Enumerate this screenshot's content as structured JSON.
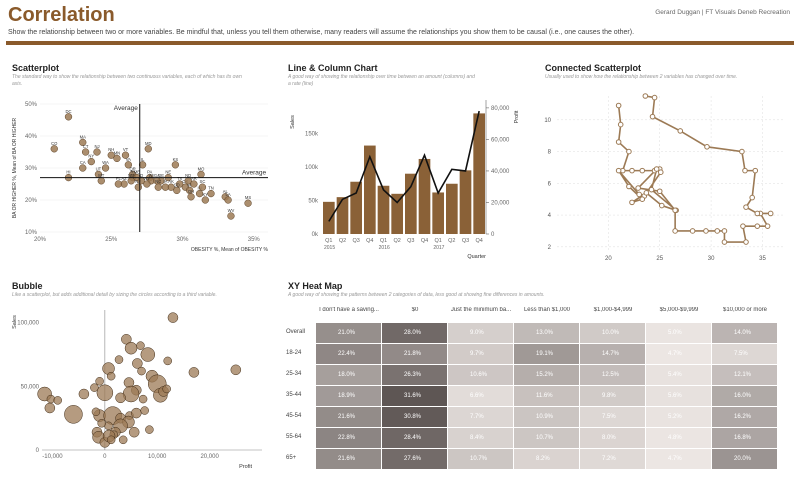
{
  "header": {
    "title": "Correlation",
    "credit": "Gerard Duggan  |  FT Visuals Deneb Recreation",
    "description": "Show the relationship between two or more variables. Be mindful that, unless you tell them otherwise, many readers will assume the relationships you show them to be causal (i.e., one causes the other).",
    "accent_color": "#8a5a2b"
  },
  "panels": {
    "scatter": {
      "title": "Scatterplot",
      "desc": "The standard way to show the relationship between two continuous variables, each of which has its own axis."
    },
    "linecol": {
      "title": "Line & Column Chart",
      "desc": "A good way of showing the relationship over time between an amount (columns) and a rate (line)"
    },
    "connected": {
      "title": "Connected Scatterplot",
      "desc": "Usually used to show how the relationship between 2 variables has changed over time."
    },
    "bubble": {
      "title": "Bubble",
      "desc": "Like a scatterplot, but adds additional detail by sizing the circles according to a third variable."
    },
    "heatmap": {
      "title": "XY Heat Map",
      "desc": "A good way of showing the patterns between 2 categories of data, less good at showing fine differences in amounts."
    }
  },
  "chart_data": [
    {
      "id": "scatter",
      "type": "scatter",
      "title": "Scatterplot",
      "xlabel": "OBESITY %, Mean of OBESITY %",
      "ylabel": "BA OR HIGHER %, Mean of BA OR HIGHER",
      "xlim": [
        20,
        36
      ],
      "ylim": [
        10,
        50
      ],
      "xticks": [
        "20%",
        "25%",
        "30%",
        "35%"
      ],
      "yticks": [
        "10%",
        "20%",
        "30%",
        "40%",
        "50%"
      ],
      "x_mean": 27,
      "y_mean": 27,
      "mean_label": "Average",
      "points": [
        {
          "label": "DC",
          "x": 22,
          "y": 46
        },
        {
          "label": "CO",
          "x": 21,
          "y": 36
        },
        {
          "label": "MA",
          "x": 23,
          "y": 38
        },
        {
          "label": "CT",
          "x": 23.2,
          "y": 35
        },
        {
          "label": "NJ",
          "x": 24,
          "y": 35
        },
        {
          "label": "NH",
          "x": 25,
          "y": 34
        },
        {
          "label": "MN",
          "x": 25.4,
          "y": 33
        },
        {
          "label": "VT",
          "x": 26,
          "y": 34
        },
        {
          "label": "MD",
          "x": 27.6,
          "y": 36
        },
        {
          "label": "VA",
          "x": 26.2,
          "y": 31
        },
        {
          "label": "NY",
          "x": 23.6,
          "y": 32
        },
        {
          "label": "WA",
          "x": 24.6,
          "y": 30
        },
        {
          "label": "CA",
          "x": 23,
          "y": 30
        },
        {
          "label": "IL",
          "x": 27.2,
          "y": 31
        },
        {
          "label": "KS",
          "x": 29.5,
          "y": 31
        },
        {
          "label": "MO",
          "x": 31.3,
          "y": 28
        },
        {
          "label": "UT",
          "x": 24.1,
          "y": 28
        },
        {
          "label": "OR",
          "x": 26.5,
          "y": 28
        },
        {
          "label": "HI",
          "x": 22,
          "y": 27
        },
        {
          "label": "NE",
          "x": 29,
          "y": 27
        },
        {
          "label": "RI",
          "x": 26.5,
          "y": 27
        },
        {
          "label": "DE",
          "x": 28.5,
          "y": 26
        },
        {
          "label": "PA",
          "x": 27.7,
          "y": 27
        },
        {
          "label": "WI",
          "x": 27.8,
          "y": 26
        },
        {
          "label": "GA",
          "x": 28.2,
          "y": 26
        },
        {
          "label": "MT",
          "x": 24.3,
          "y": 26
        },
        {
          "label": "AZ",
          "x": 25.9,
          "y": 25
        },
        {
          "label": "FL",
          "x": 25.5,
          "y": 25
        },
        {
          "label": "NC",
          "x": 28.3,
          "y": 24
        },
        {
          "label": "OK",
          "x": 30.2,
          "y": 24
        },
        {
          "label": "TX",
          "x": 29.8,
          "y": 25
        },
        {
          "label": "IN",
          "x": 31.2,
          "y": 22
        },
        {
          "label": "MI",
          "x": 30.5,
          "y": 23
        },
        {
          "label": "SC",
          "x": 31.4,
          "y": 24
        },
        {
          "label": "OH",
          "x": 30.6,
          "y": 21
        },
        {
          "label": "TN",
          "x": 32,
          "y": 22
        },
        {
          "label": "AL",
          "x": 33,
          "y": 21
        },
        {
          "label": "KY",
          "x": 31.6,
          "y": 20
        },
        {
          "label": "LA",
          "x": 33.2,
          "y": 20
        },
        {
          "label": "MS",
          "x": 34.6,
          "y": 19
        },
        {
          "label": "WV",
          "x": 33.4,
          "y": 15
        },
        {
          "label": "ME",
          "x": 26.8,
          "y": 27
        },
        {
          "label": "AK",
          "x": 29.2,
          "y": 24
        },
        {
          "label": "ND",
          "x": 30.4,
          "y": 26
        },
        {
          "label": "SD",
          "x": 29.6,
          "y": 23
        },
        {
          "label": "IA",
          "x": 28.8,
          "y": 24
        },
        {
          "label": "NV",
          "x": 26.9,
          "y": 24
        },
        {
          "label": "NM",
          "x": 26.4,
          "y": 26
        },
        {
          "label": "WY",
          "x": 27.5,
          "y": 25
        },
        {
          "label": "ID",
          "x": 27.1,
          "y": 26
        },
        {
          "label": "AR",
          "x": 30.8,
          "y": 25
        }
      ]
    },
    {
      "id": "linecol",
      "type": "bar+line",
      "title": "Line & Column Chart",
      "ylabel": "Sales",
      "y2label": "Profit",
      "xlabel": "Quarter",
      "categories": [
        "Q1",
        "Q2",
        "Q3",
        "Q4",
        "Q1",
        "Q2",
        "Q3",
        "Q4",
        "Q1",
        "Q2",
        "Q3",
        "Q4"
      ],
      "years": [
        {
          "label": "2015",
          "at": 0
        },
        {
          "label": "2016",
          "at": 4
        },
        {
          "label": "2017",
          "at": 8
        }
      ],
      "bars": [
        48000,
        55000,
        78000,
        132000,
        72000,
        60000,
        90000,
        112000,
        62000,
        75000,
        95000,
        180000
      ],
      "line": [
        8000,
        22000,
        26000,
        49000,
        28000,
        20000,
        30000,
        50000,
        26000,
        41000,
        40000,
        78000
      ],
      "ylim": [
        0,
        200000
      ],
      "y2lim": [
        0,
        85000
      ],
      "yticks": [
        "0k",
        "50k",
        "100k",
        "150k"
      ],
      "y2ticks": [
        "0",
        "20,000",
        "40,000",
        "60,000",
        "80,000"
      ]
    },
    {
      "id": "connected",
      "type": "line",
      "title": "Connected Scatterplot",
      "xlim": [
        15,
        37
      ],
      "ylim": [
        1.8,
        11.5
      ],
      "xticks": [
        "20",
        "25",
        "30",
        "35"
      ],
      "yticks": [
        "2",
        "4",
        "6",
        "8",
        "10"
      ],
      "points": [
        [
          21,
          10.9
        ],
        [
          21.2,
          9.7
        ],
        [
          21,
          8.6
        ],
        [
          22,
          8
        ],
        [
          21.4,
          6.8
        ],
        [
          22.3,
          6.8
        ],
        [
          23.3,
          6.8
        ],
        [
          24.5,
          6.8
        ],
        [
          25,
          6.9
        ],
        [
          25.1,
          6.7
        ],
        [
          23.5,
          5.2
        ],
        [
          23,
          5.3
        ],
        [
          21,
          6.8
        ],
        [
          22,
          5.8
        ],
        [
          23.3,
          5
        ],
        [
          22.3,
          4.8
        ],
        [
          23.7,
          5.4
        ],
        [
          25.2,
          4.6
        ],
        [
          26.6,
          4.3
        ],
        [
          24.2,
          5.6
        ],
        [
          24.7,
          6.9
        ],
        [
          22.9,
          5.7
        ],
        [
          25,
          5.5
        ],
        [
          26.5,
          4.3
        ],
        [
          26.5,
          3
        ],
        [
          28.2,
          3
        ],
        [
          29.5,
          3
        ],
        [
          30.6,
          3
        ],
        [
          31.3,
          3
        ],
        [
          31.3,
          2.3
        ],
        [
          33.4,
          2.3
        ],
        [
          33.1,
          3.3
        ],
        [
          34.5,
          3.3
        ],
        [
          35.5,
          3.3
        ],
        [
          34.8,
          4.1
        ],
        [
          35.8,
          4.1
        ],
        [
          34.5,
          4.1
        ],
        [
          33.4,
          4.5
        ],
        [
          34,
          5.1
        ],
        [
          34.3,
          6.8
        ],
        [
          33.3,
          6.8
        ],
        [
          33,
          8
        ],
        [
          29.6,
          8.3
        ],
        [
          27,
          9.3
        ],
        [
          24.3,
          10.2
        ],
        [
          24.5,
          11.4
        ],
        [
          23.6,
          11.5
        ]
      ]
    },
    {
      "id": "bubble",
      "type": "bubble",
      "title": "Bubble",
      "xlabel": "Profit",
      "ylabel": "Sales",
      "xlim": [
        -12000,
        30000
      ],
      "ylim": [
        0,
        110000
      ],
      "xticks": [
        "-10,000",
        "0",
        "10,000",
        "20,000"
      ],
      "yticks": [
        "0",
        "50,000",
        "100,000"
      ],
      "points": [
        [
          -11500,
          44000,
          7
        ],
        [
          -10300,
          40000,
          4
        ],
        [
          -10500,
          33000,
          5
        ],
        [
          -9000,
          39000,
          4
        ],
        [
          -6000,
          28000,
          9
        ],
        [
          -4000,
          44000,
          5
        ],
        [
          -2000,
          49000,
          4
        ],
        [
          0,
          45000,
          8
        ],
        [
          700,
          64000,
          6
        ],
        [
          1200,
          58000,
          4
        ],
        [
          6000,
          47000,
          5
        ],
        [
          4600,
          53000,
          5
        ],
        [
          6800,
          82000,
          4
        ],
        [
          8200,
          75000,
          7
        ],
        [
          6200,
          68000,
          5
        ],
        [
          7000,
          62000,
          4
        ],
        [
          9000,
          58000,
          6
        ],
        [
          10000,
          52000,
          9
        ],
        [
          13000,
          104000,
          5
        ],
        [
          12000,
          70000,
          4
        ],
        [
          10600,
          43000,
          7
        ],
        [
          11200,
          46000,
          5
        ],
        [
          7300,
          40000,
          4
        ],
        [
          5000,
          44000,
          8
        ],
        [
          3000,
          41000,
          5
        ],
        [
          -1000,
          27000,
          6
        ],
        [
          1500,
          27000,
          9
        ],
        [
          3000,
          25000,
          5
        ],
        [
          4700,
          27000,
          4
        ],
        [
          6000,
          29000,
          5
        ],
        [
          7600,
          31000,
          4
        ],
        [
          4500,
          22000,
          6
        ],
        [
          3000,
          19000,
          7
        ],
        [
          2000,
          14000,
          5
        ],
        [
          1700,
          12000,
          4
        ],
        [
          700,
          19000,
          4
        ],
        [
          -1500,
          14000,
          5
        ],
        [
          -1200,
          10000,
          6
        ],
        [
          0,
          6000,
          5
        ],
        [
          800,
          11000,
          6
        ],
        [
          1200,
          8000,
          4
        ],
        [
          -600,
          21000,
          4
        ],
        [
          -1700,
          30000,
          4
        ],
        [
          3500,
          8000,
          4
        ],
        [
          8500,
          16000,
          4
        ],
        [
          -1000,
          54000,
          4
        ],
        [
          4100,
          87000,
          5
        ],
        [
          5000,
          80000,
          6
        ],
        [
          2700,
          71000,
          4
        ],
        [
          17000,
          61000,
          5
        ],
        [
          25000,
          63000,
          5
        ],
        [
          11800,
          48000,
          4
        ],
        [
          5600,
          14000,
          5
        ]
      ]
    },
    {
      "id": "heatmap",
      "type": "heatmap",
      "title": "XY Heat Map",
      "columns": [
        "I don't have a saving...",
        "$0",
        "Just the minimum ba...",
        "Less than $1,000",
        "$1,000-$4,999",
        "$5,000-$9,999",
        "$10,000 or more"
      ],
      "rows": [
        "Overall",
        "18-24",
        "25-34",
        "35-44",
        "45-54",
        "55-64",
        "65+"
      ],
      "values": [
        [
          21.0,
          28.0,
          9.0,
          13.0,
          10.0,
          5.0,
          14.0
        ],
        [
          22.4,
          21.8,
          9.7,
          19.1,
          14.7,
          4.7,
          7.5
        ],
        [
          18.0,
          26.3,
          10.6,
          15.2,
          12.5,
          5.4,
          12.1
        ],
        [
          18.9,
          31.6,
          6.6,
          11.6,
          9.8,
          5.6,
          16.0
        ],
        [
          21.6,
          30.8,
          7.7,
          10.9,
          7.5,
          5.2,
          16.2
        ],
        [
          22.8,
          28.4,
          8.4,
          10.7,
          8.0,
          4.8,
          16.8
        ],
        [
          21.6,
          27.6,
          10.7,
          8.2,
          7.2,
          4.7,
          20.0
        ]
      ],
      "display": [
        [
          "21.0%",
          "28.0%",
          "9.0%",
          "13.0%",
          "10.0%",
          "5.0%",
          "14.0%"
        ],
        [
          "22.4%",
          "21.8%",
          "9.7%",
          "19.1%",
          "14.7%",
          "4.7%",
          "7.5%"
        ],
        [
          "18.0%",
          "26.3%",
          "10.6%",
          "15.2%",
          "12.5%",
          "5.4%",
          "12.1%"
        ],
        [
          "18.9%",
          "31.6%",
          "6.6%",
          "11.6%",
          "9.8%",
          "5.6%",
          "16.0%"
        ],
        [
          "21.6%",
          "30.8%",
          "7.7%",
          "10.9%",
          "7.5%",
          "5.2%",
          "16.2%"
        ],
        [
          "22.8%",
          "28.4%",
          "8.4%",
          "10.7%",
          "8.0%",
          "4.8%",
          "16.8%"
        ],
        [
          "21.6%",
          "27.6%",
          "10.7%",
          "8.2%",
          "7.2%",
          "4.7%",
          "20.0%"
        ]
      ],
      "color_low": "#ece6e3",
      "color_high": "#5e5654"
    }
  ]
}
